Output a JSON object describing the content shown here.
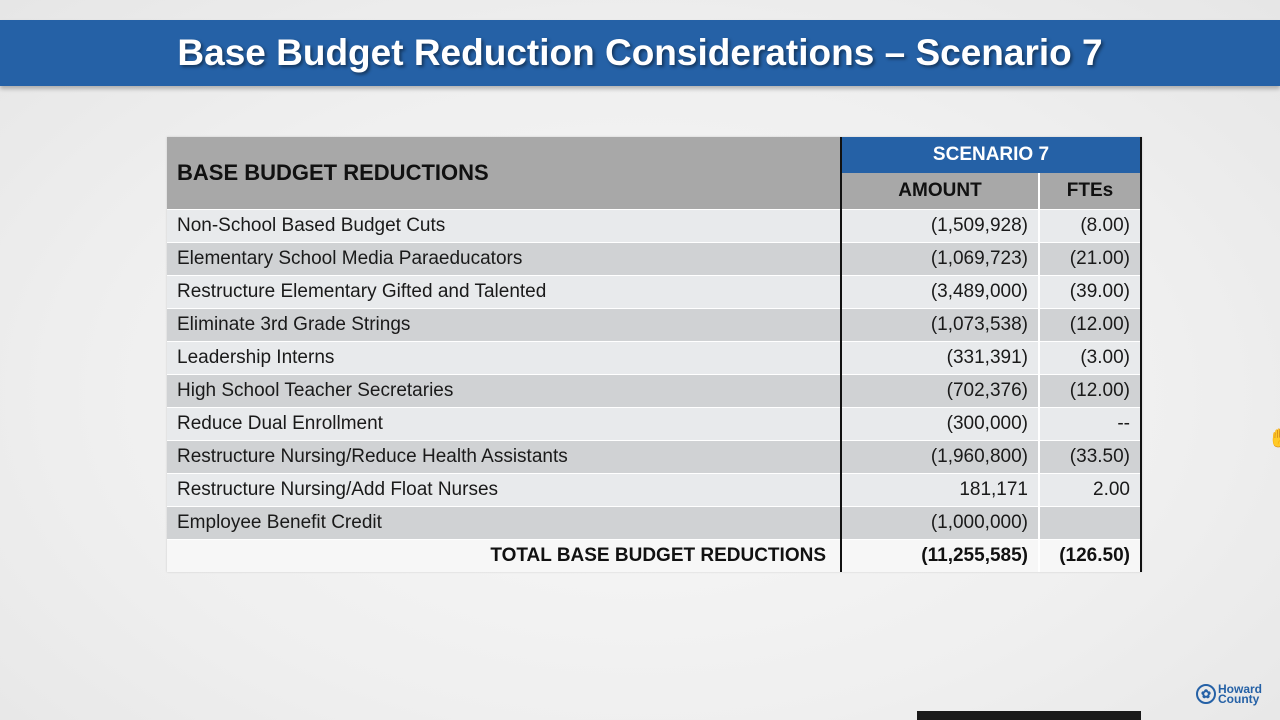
{
  "title": "Base Budget Reduction Considerations – Scenario 7",
  "table": {
    "header_main": "BASE BUDGET REDUCTIONS",
    "header_scenario": "SCENARIO 7",
    "header_amount": "AMOUNT",
    "header_ftes": "FTEs",
    "rows": [
      {
        "label": "Non-School Based Budget Cuts",
        "amount": "(1,509,928)",
        "fte": "(8.00)"
      },
      {
        "label": "Elementary School Media Paraeducators",
        "amount": "(1,069,723)",
        "fte": "(21.00)"
      },
      {
        "label": "Restructure Elementary Gifted and Talented",
        "amount": "(3,489,000)",
        "fte": "(39.00)"
      },
      {
        "label": "Eliminate 3rd Grade Strings",
        "amount": "(1,073,538)",
        "fte": "(12.00)"
      },
      {
        "label": "Leadership Interns",
        "amount": "(331,391)",
        "fte": "(3.00)"
      },
      {
        "label": "High School Teacher Secretaries",
        "amount": "(702,376)",
        "fte": "(12.00)"
      },
      {
        "label": "Reduce Dual Enrollment",
        "amount": "(300,000)",
        "fte": "--"
      },
      {
        "label": "Restructure Nursing/Reduce Health Assistants",
        "amount": "(1,960,800)",
        "fte": "(33.50)"
      },
      {
        "label": "Restructure Nursing/Add Float Nurses",
        "amount": "181,171",
        "fte": "2.00"
      },
      {
        "label": "Employee Benefit Credit",
        "amount": "(1,000,000)",
        "fte": ""
      }
    ],
    "total": {
      "label": "TOTAL BASE BUDGET REDUCTIONS",
      "amount": "(11,255,585)",
      "fte": "(126.50)"
    }
  },
  "logo": {
    "line1": "Howard",
    "line2": "County"
  },
  "icons": {
    "cursor": "hand-cursor-icon"
  },
  "colors": {
    "accent": "#2561a6",
    "header_gray": "#a8a8a8"
  }
}
